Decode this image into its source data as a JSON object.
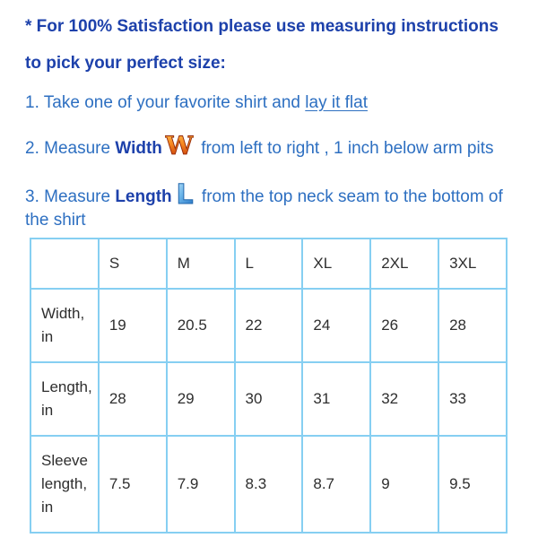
{
  "colors": {
    "heading_blue": "#1d41ab",
    "body_blue": "#2d6fc1",
    "table_border_blue": "#86cff2",
    "table_text": "#2e2e2e",
    "w_icon_gradient_top": "#fdc050",
    "w_icon_gradient_mid": "#f6861f",
    "w_icon_gradient_bottom": "#bb2d08",
    "l_icon_gradient_top": "#b8e0f7",
    "l_icon_gradient_bottom": "#2e7cc9"
  },
  "intro": {
    "line1": "* For 100% Satisfaction please use measuring instructions",
    "line2": "to pick your perfect size:"
  },
  "steps": {
    "step1": {
      "text_before": "1. Take one of your favorite shirt and ",
      "underlined_text": "lay it flat"
    },
    "step2": {
      "text_before": "2. Measure ",
      "keyword": "Width",
      "icon_letter": "W",
      "text_after": " from left to right , 1 inch below arm pits"
    },
    "step3": {
      "text_before": "3. Measure ",
      "keyword": "Length",
      "icon_letter": "L",
      "text_after_line1": " from the top neck seam to the bottom of",
      "text_after_line2": "the shirt"
    }
  },
  "size_table": {
    "header": [
      "",
      "S",
      "M",
      "L",
      "XL",
      "2XL",
      "3XL"
    ],
    "rows": [
      {
        "label": "Width, in",
        "values": [
          "19",
          "20.5",
          "22",
          "24",
          "26",
          "28"
        ]
      },
      {
        "label": "Length, in",
        "values": [
          "28",
          "29",
          "30",
          "31",
          "32",
          "33"
        ]
      },
      {
        "label": "Sleeve length, in",
        "values": [
          "7.5",
          "7.9",
          "8.3",
          "8.7",
          "9",
          "9.5"
        ]
      }
    ]
  }
}
